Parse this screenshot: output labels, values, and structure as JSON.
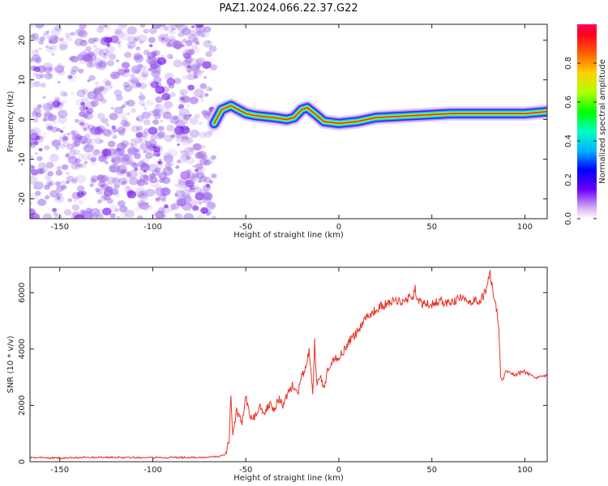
{
  "title": "PAZ1.2024.066.22.37.G22",
  "chart_data": [
    {
      "type": "heatmap",
      "name": "spectrogram",
      "xlabel": "Height of straight line (km)",
      "ylabel": "Frequency (Hz)",
      "xlim": [
        -166,
        112
      ],
      "ylim": [
        -25,
        24
      ],
      "xticks": [
        -150,
        -100,
        -50,
        0,
        50,
        100
      ],
      "yticks": [
        -20,
        -10,
        0,
        10,
        20
      ],
      "noise_region": {
        "x": [
          -166,
          -67
        ],
        "color": "#8a2be2"
      },
      "signal_start_x": -67,
      "ridge": [
        {
          "x": -67,
          "y": -1.0
        },
        {
          "x": -63,
          "y": 2.5
        },
        {
          "x": -58,
          "y": 3.5
        },
        {
          "x": -54,
          "y": 2.5
        },
        {
          "x": -50,
          "y": 1.5
        },
        {
          "x": -45,
          "y": 1.0
        },
        {
          "x": -35,
          "y": 0.5
        },
        {
          "x": -28,
          "y": 0.0
        },
        {
          "x": -24,
          "y": 0.5
        },
        {
          "x": -20,
          "y": 2.5
        },
        {
          "x": -17,
          "y": 3.0
        },
        {
          "x": -13,
          "y": 1.5
        },
        {
          "x": -8,
          "y": -0.5
        },
        {
          "x": 0,
          "y": -1.0
        },
        {
          "x": 10,
          "y": -0.5
        },
        {
          "x": 20,
          "y": 0.5
        },
        {
          "x": 40,
          "y": 1.0
        },
        {
          "x": 60,
          "y": 1.5
        },
        {
          "x": 80,
          "y": 1.5
        },
        {
          "x": 100,
          "y": 1.5
        },
        {
          "x": 112,
          "y": 2.0
        }
      ]
    },
    {
      "type": "line",
      "name": "snr",
      "xlabel": "Height of straight line (km)",
      "ylabel": "SNR (10 * v/v)",
      "xlim": [
        -166,
        112
      ],
      "ylim": [
        0,
        6900
      ],
      "xticks": [
        -150,
        -100,
        -50,
        0,
        50,
        100
      ],
      "yticks": [
        0,
        2000,
        4000,
        6000
      ],
      "color": "#e8352a",
      "series": [
        {
          "x": [
            -166,
            -150,
            -130,
            -110,
            -90,
            -75,
            -65,
            -61,
            -59,
            -58,
            -57,
            -55,
            -52,
            -50,
            -48,
            -45,
            -42,
            -40,
            -37,
            -35,
            -32,
            -30,
            -27,
            -25,
            -22,
            -20,
            -18,
            -16,
            -14,
            -13,
            -12,
            -10,
            -8,
            -6,
            -4,
            -2,
            0,
            3,
            6,
            10,
            14,
            18,
            22,
            26,
            30,
            35,
            40,
            41,
            42,
            45,
            50,
            55,
            60,
            65,
            70,
            75,
            78,
            80,
            81,
            82,
            83,
            84,
            85,
            86,
            87,
            88,
            90,
            95,
            100,
            105,
            112
          ],
          "y": [
            150,
            130,
            160,
            140,
            150,
            150,
            180,
            250,
            700,
            2450,
            900,
            1800,
            1400,
            2300,
            1600,
            1600,
            2000,
            1700,
            2100,
            1900,
            2200,
            2000,
            2500,
            2700,
            2400,
            3000,
            3300,
            3900,
            2500,
            4250,
            2800,
            3000,
            2600,
            3200,
            3400,
            3700,
            3700,
            4000,
            4300,
            4600,
            5100,
            5300,
            5500,
            5600,
            5700,
            5700,
            5900,
            6200,
            5700,
            5600,
            5600,
            5700,
            5600,
            5800,
            5700,
            5700,
            5900,
            6300,
            6800,
            6400,
            6000,
            5600,
            5400,
            4600,
            3000,
            2900,
            3200,
            3100,
            3200,
            3000,
            3100
          ]
        }
      ]
    }
  ],
  "colorbar": {
    "label": "Normalized spectral amplitude",
    "ticks": [
      "0.0",
      "0.2",
      "0.4",
      "0.6",
      "0.8"
    ],
    "tick_values": [
      0,
      0.2,
      0.4,
      0.6,
      0.8
    ],
    "range": [
      0,
      1
    ]
  }
}
